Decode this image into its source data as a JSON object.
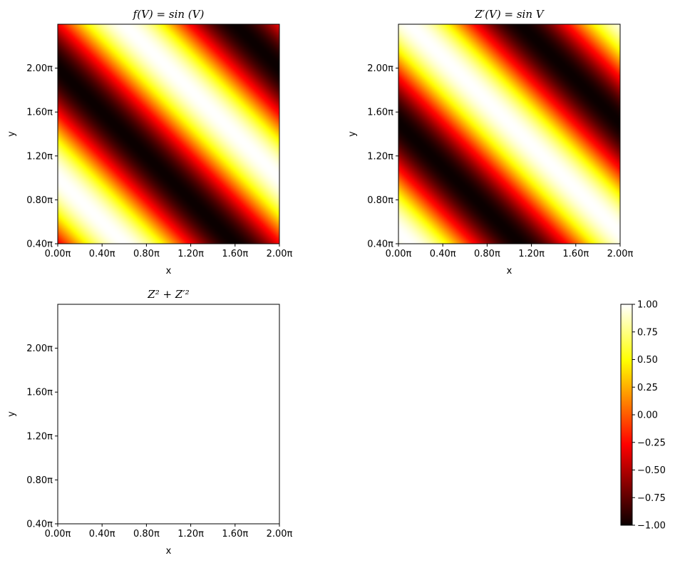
{
  "chart_data": [
    {
      "type": "heatmap",
      "title": "f(V) = sin (V)",
      "xlabel": "x",
      "ylabel": "y",
      "xlim": [
        0,
        2.0
      ],
      "ylim": [
        0.4,
        2.4
      ],
      "xticks": [
        0.0,
        0.4,
        0.8,
        1.2,
        1.6,
        2.0
      ],
      "xtick_labels": [
        "0.00π",
        "0.40π",
        "0.80π",
        "1.20π",
        "1.60π",
        "2.00π"
      ],
      "yticks": [
        0.4,
        0.8,
        1.2,
        1.6,
        2.0
      ],
      "ytick_labels": [
        "0.40π",
        "0.80π",
        "1.20π",
        "1.60π",
        "2.00π"
      ],
      "field": "sin(π(x + y) − π/2)",
      "colormap": "hot",
      "vmin": -1,
      "vmax": 1
    },
    {
      "type": "heatmap",
      "title": "Z′(V) = sin V",
      "xlabel": "x",
      "ylabel": "y",
      "xlim": [
        0,
        2.0
      ],
      "ylim": [
        0.4,
        2.4
      ],
      "xticks": [
        0.0,
        0.4,
        0.8,
        1.2,
        1.6,
        2.0
      ],
      "xtick_labels": [
        "0.00π",
        "0.40π",
        "0.80π",
        "1.20π",
        "1.60π",
        "2.00π"
      ],
      "yticks": [
        0.4,
        0.8,
        1.2,
        1.6,
        2.0
      ],
      "ytick_labels": [
        "0.40π",
        "0.80π",
        "1.20π",
        "1.60π",
        "2.00π"
      ],
      "field": "sin(π(x + y))",
      "colormap": "hot",
      "vmin": -1,
      "vmax": 1
    },
    {
      "type": "heatmap",
      "title": "Z² + Z′²",
      "xlabel": "x",
      "ylabel": "y",
      "xlim": [
        0,
        2.0
      ],
      "ylim": [
        0.4,
        2.4
      ],
      "xticks": [
        0.0,
        0.4,
        0.8,
        1.2,
        1.6,
        2.0
      ],
      "xtick_labels": [
        "0.00π",
        "0.40π",
        "0.80π",
        "1.20π",
        "1.60π",
        "2.00π"
      ],
      "yticks": [
        0.4,
        0.8,
        1.2,
        1.6,
        2.0
      ],
      "ytick_labels": [
        "0.40π",
        "0.80π",
        "1.20π",
        "1.60π",
        "2.00π"
      ],
      "field": "1 (constant)",
      "colormap": "hot",
      "vmin": -1,
      "vmax": 1
    }
  ],
  "colorbar": {
    "colormap": "hot",
    "min": -1.0,
    "max": 1.0,
    "ticks": [
      1.0,
      0.75,
      0.5,
      0.25,
      0.0,
      -0.25,
      -0.5,
      -0.75,
      -1.0
    ],
    "tick_labels": [
      "1.00",
      "0.75",
      "0.50",
      "0.25",
      "0.00",
      "−0.25",
      "−0.50",
      "−0.75",
      "−1.00"
    ]
  }
}
